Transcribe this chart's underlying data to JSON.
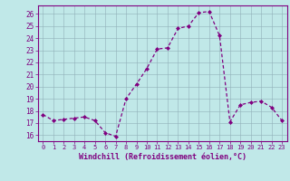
{
  "x": [
    0,
    1,
    2,
    3,
    4,
    5,
    6,
    7,
    8,
    9,
    10,
    11,
    12,
    13,
    14,
    15,
    16,
    17,
    18,
    19,
    20,
    21,
    22,
    23
  ],
  "y": [
    17.7,
    17.2,
    17.3,
    17.4,
    17.5,
    17.2,
    16.2,
    15.9,
    19.0,
    20.2,
    21.5,
    23.1,
    23.2,
    24.8,
    25.0,
    26.1,
    26.2,
    24.2,
    17.1,
    18.5,
    18.7,
    18.8,
    18.3,
    17.2
  ],
  "line_color": "#800080",
  "marker": "D",
  "marker_size": 2.0,
  "bg_color": "#c0e8e8",
  "grid_color": "#90b0b8",
  "xlabel": "Windchill (Refroidissement éolien,°C)",
  "ylim": [
    15.5,
    26.7
  ],
  "xlim": [
    -0.5,
    23.5
  ],
  "yticks": [
    16,
    17,
    18,
    19,
    20,
    21,
    22,
    23,
    24,
    25,
    26
  ],
  "xticks": [
    0,
    1,
    2,
    3,
    4,
    5,
    6,
    7,
    8,
    9,
    10,
    11,
    12,
    13,
    14,
    15,
    16,
    17,
    18,
    19,
    20,
    21,
    22,
    23
  ],
  "tick_color": "#800080",
  "label_color": "#800080",
  "spine_color": "#800080",
  "font_size_x": 5.0,
  "font_size_y": 5.5,
  "font_size_xlabel": 6.0
}
